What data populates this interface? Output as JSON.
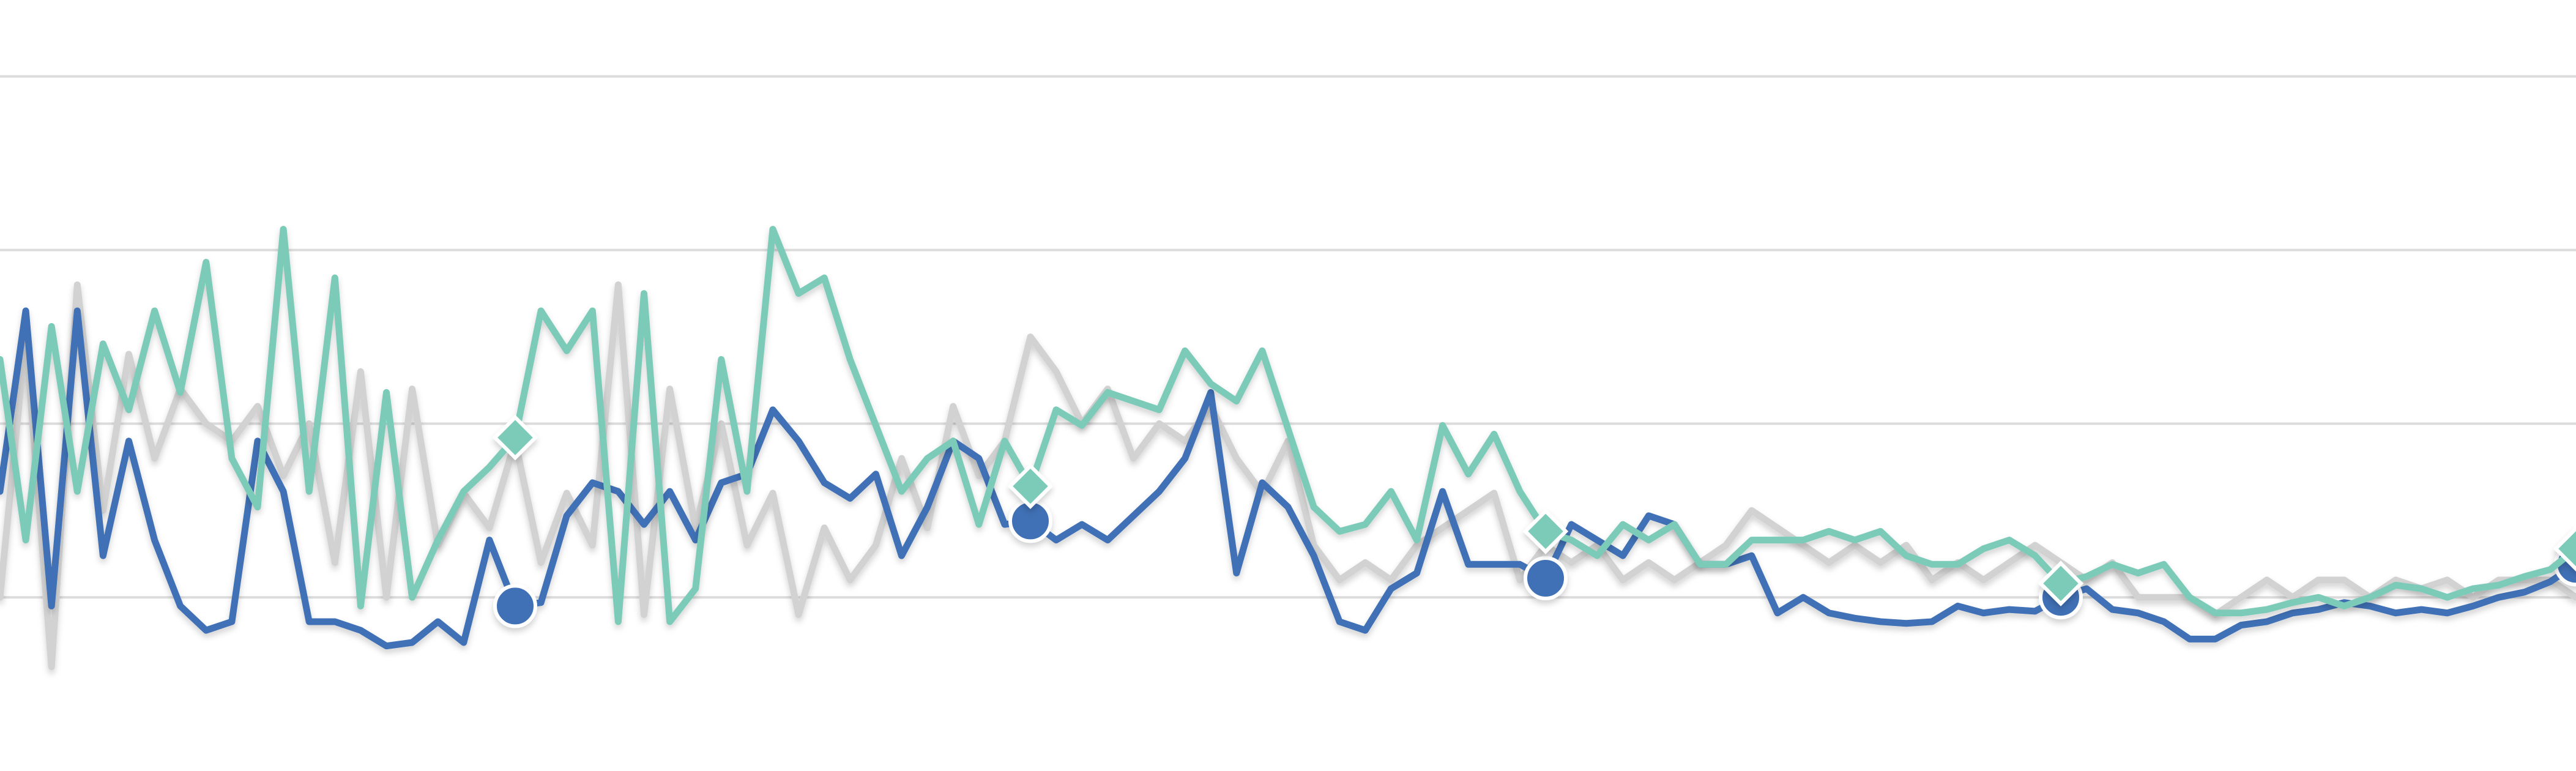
{
  "chart_data": {
    "type": "line",
    "xlim": [
      0,
      100
    ],
    "ylim": [
      0,
      4.44
    ],
    "yticks": [
      1,
      2,
      3,
      4
    ],
    "grid": true,
    "series": [
      {
        "color": "#d2d2d2",
        "marker": "none",
        "values": [
          1.0,
          2.5,
          0.6,
          2.8,
          1.5,
          2.4,
          1.8,
          2.2,
          2.0,
          1.9,
          2.1,
          1.7,
          2.0,
          1.2,
          2.3,
          1.0,
          2.2,
          1.3,
          1.6,
          1.4,
          1.9,
          1.2,
          1.6,
          1.3,
          2.8,
          0.9,
          2.2,
          1.4,
          2.0,
          1.3,
          1.6,
          0.9,
          1.4,
          1.1,
          1.3,
          1.8,
          1.4,
          2.1,
          1.7,
          1.9,
          2.5,
          2.3,
          2.0,
          2.2,
          1.8,
          2.0,
          1.9,
          2.1,
          1.8,
          1.6,
          1.9,
          1.3,
          1.1,
          1.2,
          1.1,
          1.3,
          1.4,
          1.5,
          1.6,
          1.1,
          1.3,
          1.2,
          1.3,
          1.1,
          1.2,
          1.1,
          1.2,
          1.3,
          1.5,
          1.4,
          1.3,
          1.2,
          1.3,
          1.2,
          1.3,
          1.1,
          1.2,
          1.1,
          1.2,
          1.3,
          1.2,
          1.1,
          1.2,
          1.0,
          1.0,
          1.0,
          0.9,
          1.0,
          1.1,
          1.0,
          1.1,
          1.1,
          1.0,
          1.1,
          1.05,
          1.1,
          1.0,
          1.1,
          1.1,
          1.1,
          1.0
        ]
      },
      {
        "color": "#3f6fb5",
        "marker": "circle",
        "marker_every": 20,
        "values": [
          1.61,
          2.65,
          0.95,
          2.65,
          1.24,
          1.9,
          1.33,
          0.95,
          0.81,
          0.86,
          1.9,
          1.61,
          0.86,
          0.86,
          0.81,
          0.72,
          0.74,
          0.86,
          0.74,
          1.33,
          0.95,
          0.97,
          1.47,
          1.66,
          1.61,
          1.42,
          1.61,
          1.33,
          1.66,
          1.71,
          2.08,
          1.9,
          1.66,
          1.57,
          1.71,
          1.24,
          1.52,
          1.9,
          1.8,
          1.42,
          1.44,
          1.33,
          1.42,
          1.33,
          1.47,
          1.61,
          1.8,
          2.18,
          1.14,
          1.66,
          1.52,
          1.24,
          0.86,
          0.81,
          1.05,
          1.14,
          1.61,
          1.19,
          1.19,
          1.19,
          1.11,
          1.42,
          1.33,
          1.24,
          1.47,
          1.42,
          1.19,
          1.19,
          1.24,
          0.91,
          1.0,
          0.91,
          0.88,
          0.86,
          0.85,
          0.86,
          0.95,
          0.91,
          0.93,
          0.92,
          1.0,
          1.05,
          0.93,
          0.91,
          0.86,
          0.76,
          0.76,
          0.84,
          0.86,
          0.91,
          0.93,
          0.97,
          0.95,
          0.91,
          0.93,
          0.91,
          0.95,
          1.0,
          1.03,
          1.09,
          1.19
        ]
      },
      {
        "color": "#7ccbb9",
        "marker": "diamond",
        "marker_every": 20,
        "values": [
          2.37,
          1.33,
          2.56,
          1.61,
          2.46,
          2.08,
          2.65,
          2.18,
          2.93,
          1.8,
          1.52,
          3.12,
          1.61,
          2.84,
          0.95,
          2.18,
          1.0,
          1.33,
          1.61,
          1.75,
          1.92,
          2.65,
          2.42,
          2.65,
          0.86,
          2.75,
          0.86,
          1.05,
          2.37,
          1.61,
          3.12,
          2.75,
          2.84,
          2.37,
          1.99,
          1.61,
          1.8,
          1.9,
          1.42,
          1.9,
          1.64,
          2.08,
          1.99,
          2.18,
          2.13,
          2.08,
          2.42,
          2.23,
          2.13,
          2.42,
          1.97,
          1.52,
          1.38,
          1.42,
          1.61,
          1.33,
          1.99,
          1.71,
          1.94,
          1.61,
          1.38,
          1.33,
          1.24,
          1.42,
          1.33,
          1.42,
          1.19,
          1.19,
          1.33,
          1.33,
          1.33,
          1.38,
          1.33,
          1.38,
          1.24,
          1.19,
          1.19,
          1.28,
          1.33,
          1.24,
          1.08,
          1.12,
          1.19,
          1.14,
          1.19,
          1.0,
          0.91,
          0.91,
          0.93,
          0.97,
          1.0,
          0.95,
          1.0,
          1.07,
          1.05,
          1.0,
          1.05,
          1.07,
          1.12,
          1.16,
          1.28
        ]
      }
    ]
  }
}
